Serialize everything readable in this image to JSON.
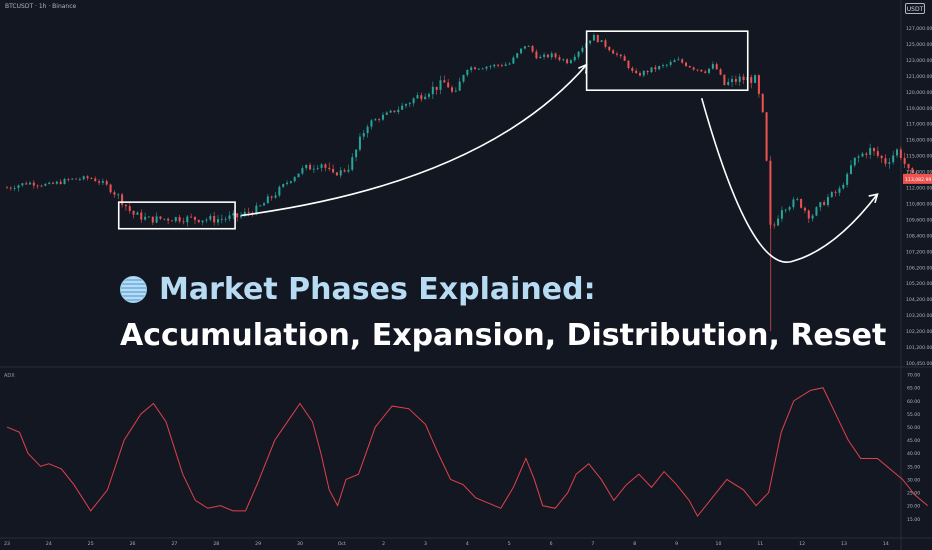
{
  "header": {
    "symbol": "BTCUSDT · 1h · Binance",
    "currency": "USDT"
  },
  "headline": {
    "line1": "Market Phases Explained:",
    "line2": "Accumulation, Expansion, Distribution, Reset"
  },
  "colors": {
    "background": "#131722",
    "up": "#26a69a",
    "down": "#ef5350",
    "adx_line": "#e0414a",
    "annotation": "#ffffff",
    "price_tag": "#ef5350"
  },
  "icons": {
    "headline_icon": "globe-icon"
  },
  "chart_data": [
    {
      "type": "candlestick",
      "title": "BTCUSDT · 1h · Binance",
      "x_tick_labels": [
        "23",
        "24",
        "25",
        "26",
        "27",
        "28",
        "29",
        "30",
        "Oct",
        "2",
        "3",
        "4",
        "5",
        "6",
        "7",
        "8",
        "9",
        "10",
        "11",
        "12",
        "13",
        "14"
      ],
      "y_tick_labels": [
        "127,000.00",
        "125,000.00",
        "123,000.00",
        "121,000.00",
        "120,000.00",
        "119,000.00",
        "117,000.00",
        "116,000.00",
        "115,000.00",
        "114,000.00",
        "112,000.00",
        "110,800.00",
        "109,600.00",
        "108,400.00",
        "107,200.00",
        "106,200.00",
        "105,200.00",
        "104,200.00",
        "103,200.00",
        "102,200.00",
        "101,200.00",
        "100,450.00"
      ],
      "current_price": "113,082.99",
      "close_path": [
        [
          0,
          112.0
        ],
        [
          0.5,
          112.6
        ],
        [
          1,
          112.3
        ],
        [
          1.5,
          113.0
        ],
        [
          2,
          113.2
        ],
        [
          2.3,
          112.5
        ],
        [
          2.7,
          111.2
        ],
        [
          3,
          110.0
        ],
        [
          3.4,
          109.6
        ],
        [
          4,
          109.7
        ],
        [
          5,
          109.6
        ],
        [
          5.5,
          109.8
        ],
        [
          6,
          110.4
        ],
        [
          6.5,
          111.8
        ],
        [
          7,
          114.0
        ],
        [
          7.5,
          114.6
        ],
        [
          7.8,
          113.6
        ],
        [
          8.2,
          114.4
        ],
        [
          8.6,
          117.0
        ],
        [
          9,
          118.0
        ],
        [
          9.5,
          119.2
        ],
        [
          10,
          120.0
        ],
        [
          10.5,
          120.6
        ],
        [
          10.7,
          119.6
        ],
        [
          11,
          122.0
        ],
        [
          11.5,
          122.2
        ],
        [
          12,
          122.5
        ],
        [
          12.4,
          125.0
        ],
        [
          12.7,
          123.2
        ],
        [
          13,
          123.6
        ],
        [
          13.4,
          122.8
        ],
        [
          13.7,
          124.4
        ],
        [
          14,
          126.0
        ],
        [
          14.4,
          124.4
        ],
        [
          14.8,
          122.6
        ],
        [
          15,
          121.0
        ],
        [
          15.4,
          121.8
        ],
        [
          15.8,
          122.4
        ],
        [
          16,
          123.0
        ],
        [
          16.4,
          122.0
        ],
        [
          16.7,
          121.6
        ],
        [
          16.9,
          122.4
        ],
        [
          17.1,
          120.4
        ],
        [
          17.5,
          120.8
        ],
        [
          17.9,
          120.8
        ],
        [
          18.1,
          117.5
        ],
        [
          18.25,
          108.5
        ],
        [
          18.5,
          110.5
        ],
        [
          18.9,
          111.0
        ],
        [
          19.2,
          109.8
        ],
        [
          19.6,
          111.2
        ],
        [
          19.9,
          111.8
        ],
        [
          20.2,
          114.6
        ],
        [
          20.6,
          115.4
        ],
        [
          21,
          114.6
        ],
        [
          21.3,
          115.4
        ],
        [
          21.6,
          113.6
        ],
        [
          21.8,
          113.1
        ]
      ],
      "phase_labels": [
        "Accumulation",
        "Expansion",
        "Distribution",
        "Reset"
      ]
    },
    {
      "type": "line",
      "title": "ADX",
      "y_tick_labels": [
        "70.00",
        "65.00",
        "60.00",
        "55.00",
        "50.00",
        "45.00",
        "40.00",
        "35.00",
        "30.00",
        "25.00",
        "20.00",
        "15.00"
      ],
      "ylim": [
        13,
        71
      ],
      "series": [
        {
          "name": "ADX",
          "points": [
            [
              0,
              50
            ],
            [
              0.3,
              48
            ],
            [
              0.5,
              40
            ],
            [
              0.8,
              35
            ],
            [
              1,
              36
            ],
            [
              1.3,
              34
            ],
            [
              1.6,
              28
            ],
            [
              2,
              18
            ],
            [
              2.4,
              26
            ],
            [
              2.8,
              45
            ],
            [
              3.2,
              55
            ],
            [
              3.5,
              59
            ],
            [
              3.8,
              52
            ],
            [
              4.2,
              32
            ],
            [
              4.5,
              22
            ],
            [
              4.8,
              19
            ],
            [
              5.1,
              20
            ],
            [
              5.4,
              18
            ],
            [
              5.7,
              18
            ],
            [
              6,
              29
            ],
            [
              6.4,
              45
            ],
            [
              6.7,
              52
            ],
            [
              7,
              59
            ],
            [
              7.3,
              52
            ],
            [
              7.5,
              40
            ],
            [
              7.7,
              26
            ],
            [
              7.9,
              20
            ],
            [
              8.1,
              30
            ],
            [
              8.4,
              32
            ],
            [
              8.8,
              50
            ],
            [
              9.2,
              58
            ],
            [
              9.6,
              57
            ],
            [
              10,
              51
            ],
            [
              10.3,
              40
            ],
            [
              10.6,
              30
            ],
            [
              10.9,
              28
            ],
            [
              11.2,
              23
            ],
            [
              11.5,
              21
            ],
            [
              11.8,
              19
            ],
            [
              12.1,
              27
            ],
            [
              12.4,
              38
            ],
            [
              12.6,
              30
            ],
            [
              12.8,
              20
            ],
            [
              13.1,
              19
            ],
            [
              13.4,
              25
            ],
            [
              13.6,
              32
            ],
            [
              13.9,
              36
            ],
            [
              14.2,
              30
            ],
            [
              14.5,
              22
            ],
            [
              14.8,
              28
            ],
            [
              15.1,
              32
            ],
            [
              15.4,
              27
            ],
            [
              15.7,
              33
            ],
            [
              16,
              28
            ],
            [
              16.3,
              22
            ],
            [
              16.5,
              16
            ],
            [
              16.8,
              22
            ],
            [
              17.2,
              30
            ],
            [
              17.6,
              26
            ],
            [
              17.9,
              20
            ],
            [
              18.2,
              25
            ],
            [
              18.5,
              48
            ],
            [
              18.8,
              60
            ],
            [
              19.2,
              64
            ],
            [
              19.5,
              65
            ],
            [
              19.8,
              55
            ],
            [
              20.1,
              45
            ],
            [
              20.4,
              38
            ],
            [
              20.8,
              38
            ],
            [
              21.1,
              34
            ],
            [
              21.4,
              30
            ],
            [
              21.7,
              24
            ],
            [
              22,
              20
            ]
          ]
        }
      ]
    }
  ]
}
